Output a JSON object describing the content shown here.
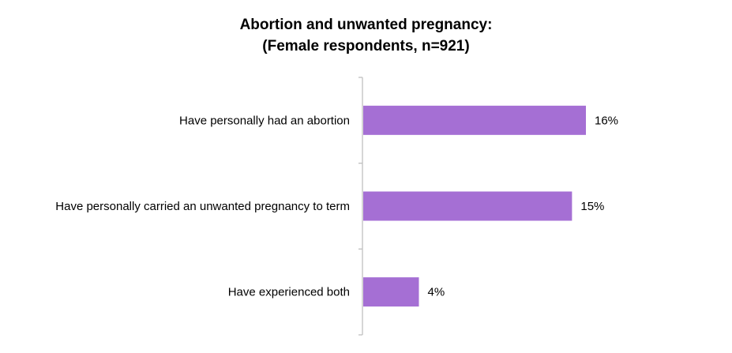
{
  "chart_data": {
    "type": "bar",
    "orientation": "horizontal",
    "title": "Abortion and unwanted pregnancy:",
    "subtitle": "(Female respondents, n=921)",
    "categories": [
      "Have personally had an abortion",
      "Have personally carried an unwanted pregnancy to term",
      "Have experienced both"
    ],
    "values": [
      16,
      15,
      4
    ],
    "data_labels": [
      "16%",
      "15%",
      "4%"
    ],
    "value_unit": "%",
    "xlim": [
      0,
      30
    ],
    "bar_color": "#a56fd4",
    "axis_color": "#bfbfbf",
    "grid": false,
    "legend": "none"
  }
}
